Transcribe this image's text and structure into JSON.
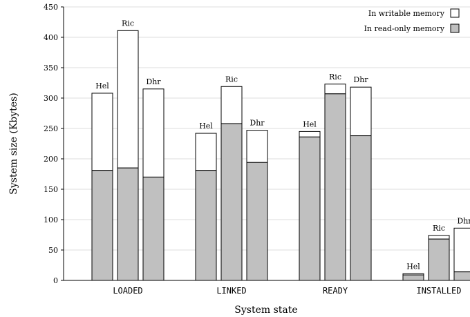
{
  "chart_data": {
    "type": "bar",
    "stacked": true,
    "xlabel": "System state",
    "ylabel": "System size (Kbytes)",
    "ylim": [
      0,
      450
    ],
    "yticks": [
      0,
      50,
      100,
      150,
      200,
      250,
      300,
      350,
      400,
      450
    ],
    "grid": true,
    "legend_position": "top-right",
    "categories": [
      "LOADED",
      "LINKED",
      "READY",
      "INSTALLED"
    ],
    "bar_labels": [
      "Hel",
      "Ric",
      "Dhr"
    ],
    "series": [
      {
        "name": "In read-only memory",
        "color": "#c0c0c0",
        "values": [
          [
            181,
            185,
            170
          ],
          [
            181,
            258,
            194
          ],
          [
            236,
            307,
            238
          ],
          [
            9,
            68,
            14
          ]
        ]
      },
      {
        "name": "In writable memory",
        "color": "#ffffff",
        "values": [
          [
            127,
            226,
            145
          ],
          [
            61,
            61,
            53
          ],
          [
            9,
            16,
            80
          ],
          [
            2,
            6,
            72
          ]
        ]
      }
    ]
  }
}
